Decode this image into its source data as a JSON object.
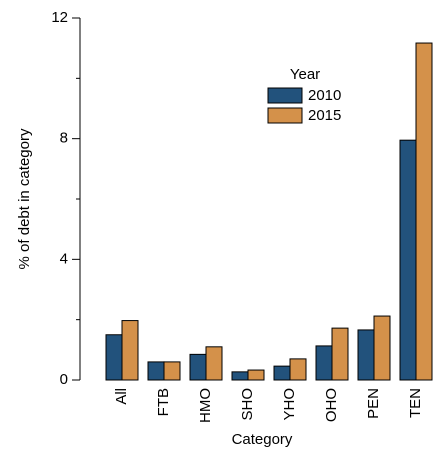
{
  "chart_data": {
    "type": "bar",
    "x_label": "Category",
    "y_label": "% of debt in category",
    "categories": [
      "All",
      "FTB",
      "HMO",
      "SHO",
      "YHO",
      "OHO",
      "PEN",
      "TEN"
    ],
    "series": [
      {
        "name": "2010",
        "color": "#22527c",
        "values": [
          1.5,
          0.6,
          0.85,
          0.27,
          0.46,
          1.13,
          1.66,
          7.95
        ]
      },
      {
        "name": "2015",
        "color": "#d4914a",
        "values": [
          1.97,
          0.6,
          1.1,
          0.33,
          0.7,
          1.72,
          2.12,
          11.17
        ]
      }
    ],
    "legend_title": "Year",
    "legend": "top-right",
    "ylim": [
      0,
      12
    ],
    "yticks": [
      0,
      4,
      8,
      12
    ],
    "minor_yticks": [
      2,
      6,
      10
    ]
  }
}
